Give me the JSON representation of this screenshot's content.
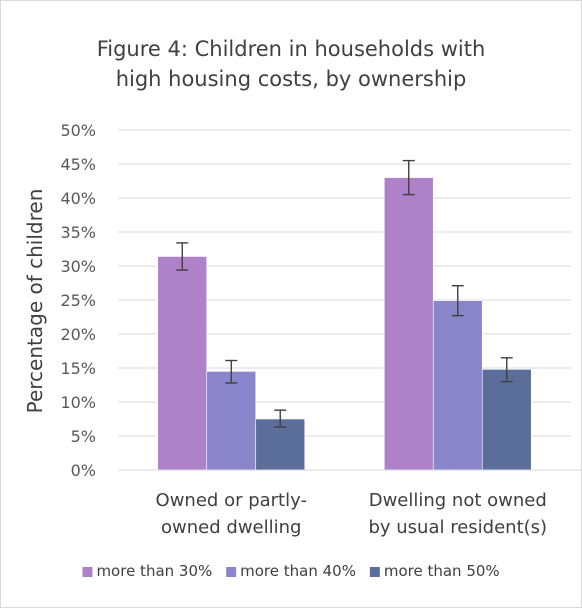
{
  "chart_data": {
    "type": "bar",
    "title_lines": [
      "Figure 4: Children in households with",
      "high housing costs, by ownership"
    ],
    "ylabel": "Percentage of children",
    "xlabel": "",
    "ylim": [
      0,
      50
    ],
    "yticks": [
      0,
      5,
      10,
      15,
      20,
      25,
      30,
      35,
      40,
      45,
      50
    ],
    "ytick_labels": [
      "0%",
      "5%",
      "10%",
      "15%",
      "20%",
      "25%",
      "30%",
      "35%",
      "40%",
      "45%",
      "50%"
    ],
    "categories": [
      [
        "Owned or partly-",
        "owned dwelling"
      ],
      [
        "Dwelling not owned",
        "by usual resident(s)"
      ]
    ],
    "series": [
      {
        "name": "more than 30%",
        "color": "#ae82c8",
        "values": [
          31.4,
          43.0
        ],
        "err_low": [
          29.4,
          40.5
        ],
        "err_high": [
          33.4,
          45.5
        ]
      },
      {
        "name": "more than 40%",
        "color": "#8b86cc",
        "values": [
          14.5,
          24.9
        ],
        "err_low": [
          12.8,
          22.7
        ],
        "err_high": [
          16.1,
          27.1
        ]
      },
      {
        "name": "more than 50%",
        "color": "#5b6e99",
        "values": [
          7.5,
          14.8
        ],
        "err_low": [
          6.3,
          13.0
        ],
        "err_high": [
          8.8,
          16.5
        ]
      }
    ],
    "grid": true,
    "legend_position": "bottom",
    "error_bars": true
  }
}
